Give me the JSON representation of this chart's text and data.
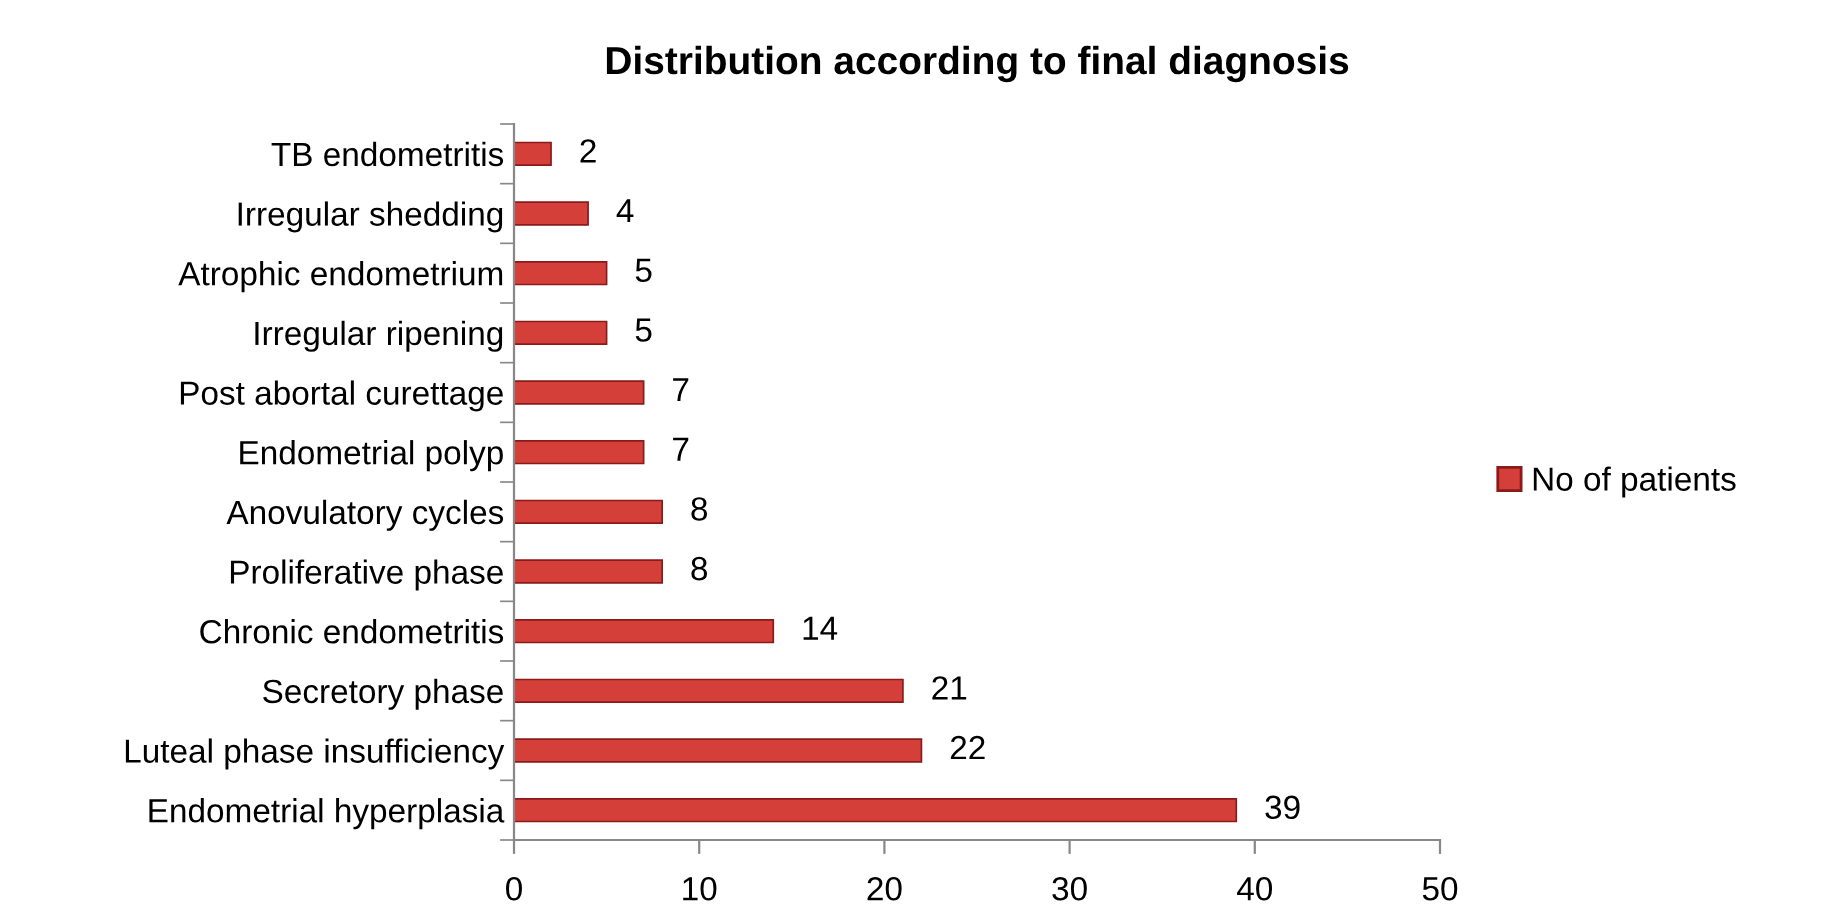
{
  "chart_data": {
    "type": "bar",
    "orientation": "horizontal",
    "title": "Distribution according to final diagnosis",
    "categories": [
      "TB endometritis",
      "Irregular shedding",
      "Atrophic endometrium",
      "Irregular ripening",
      "Post abortal curettage",
      "Endometrial polyp",
      "Anovulatory cycles",
      "Proliferative phase",
      "Chronic endometritis",
      "Secretory phase",
      "Luteal phase insufficiency",
      "Endometrial hyperplasia"
    ],
    "series": [
      {
        "name": "No of patients",
        "color": "#d43f3a",
        "values": [
          2,
          4,
          5,
          5,
          7,
          7,
          8,
          8,
          14,
          21,
          22,
          39
        ]
      }
    ],
    "xlim": [
      0,
      50
    ],
    "xticks": [
      0,
      10,
      20,
      30,
      40,
      50
    ],
    "grid": false,
    "legend": "right",
    "data_labels": true
  }
}
